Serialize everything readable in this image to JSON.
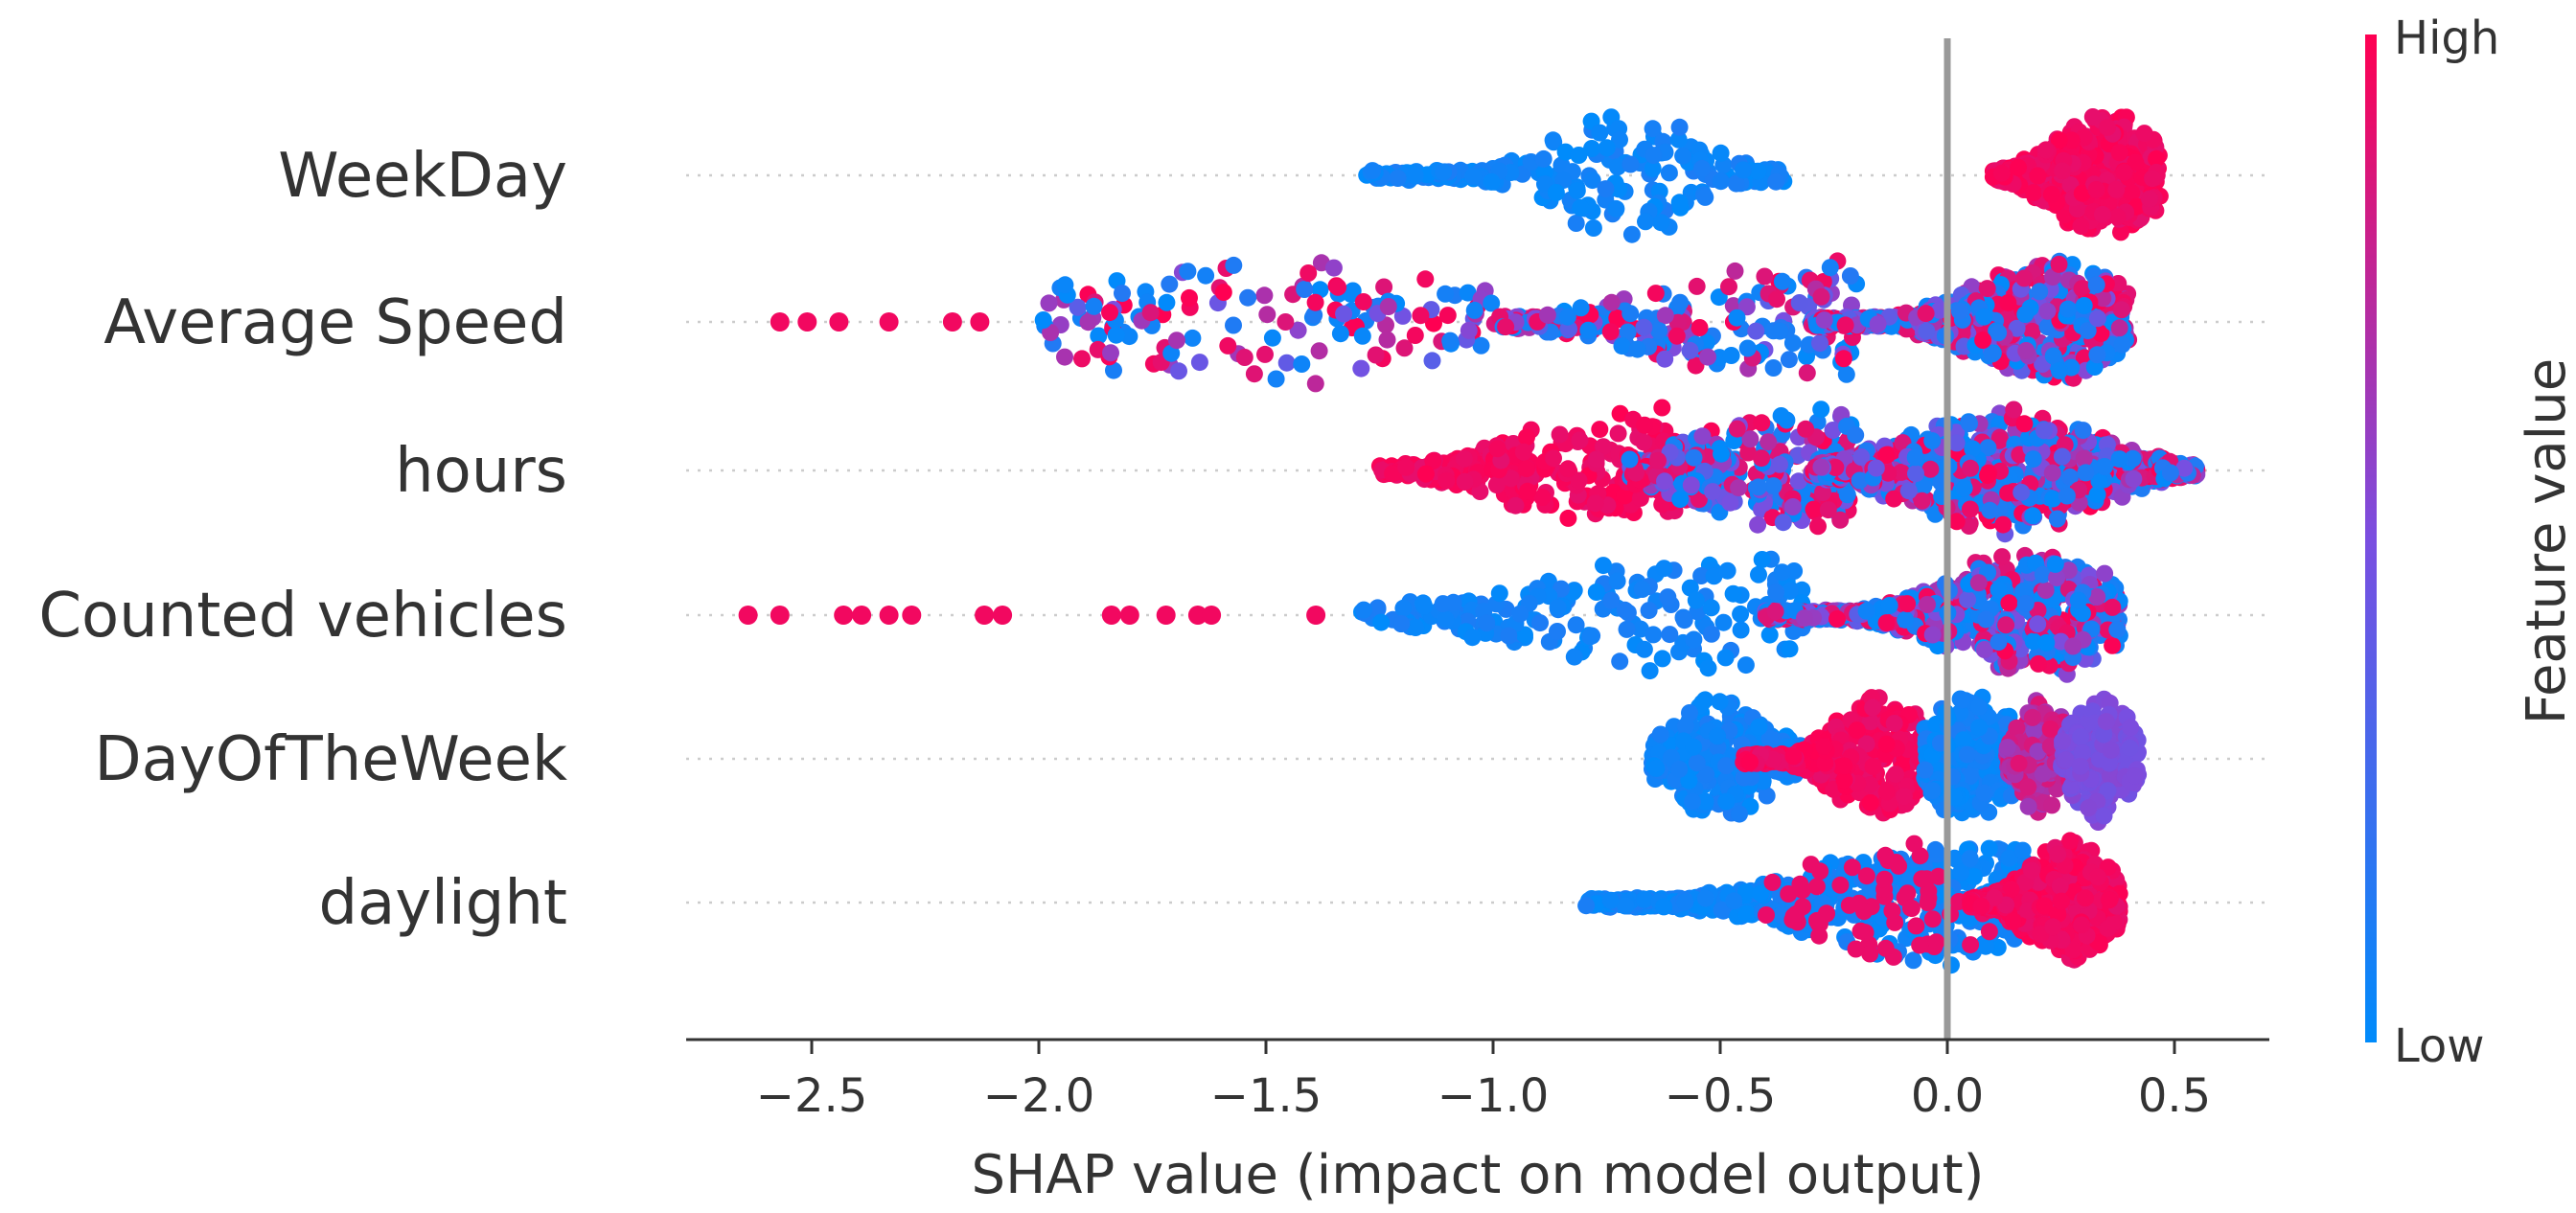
{
  "chart_data": {
    "type": "scatter",
    "subtype": "shap-beeswarm",
    "title": "",
    "xlabel": "SHAP value (impact on model output)",
    "ylabel": "",
    "xlim": [
      -2.8,
      0.7
    ],
    "xticks": [
      -2.5,
      -2.0,
      -1.5,
      -1.0,
      -0.5,
      0.0,
      0.5
    ],
    "xtick_labels": [
      "−2.5",
      "−2.0",
      "−1.5",
      "−1.0",
      "−0.5",
      "0.0",
      "0.5"
    ],
    "zero_line_at": 0.0,
    "grid": "dotted horizontal per feature",
    "colorbar": {
      "title": "Feature value",
      "high_label": "High",
      "low_label": "Low",
      "high_color": "#ff0052",
      "low_color": "#008bfb"
    },
    "features": [
      {
        "name": "WeekDay",
        "segments": [
          {
            "x0": -1.28,
            "x1": -0.35,
            "peak": -0.7,
            "width": 0.2,
            "color": "low",
            "density": 420
          },
          {
            "x0": 0.1,
            "x1": 0.47,
            "peak": 0.35,
            "width": 0.14,
            "color": "high",
            "density": 1100
          }
        ],
        "outliers": []
      },
      {
        "name": "Average Speed",
        "segments": [
          {
            "x0": -2.0,
            "x1": -1.0,
            "peak": -1.5,
            "width": 0.6,
            "color": "mix",
            "density": 260
          },
          {
            "x0": -1.0,
            "x1": -0.2,
            "peak": -0.3,
            "width": 0.4,
            "color": "mix",
            "density": 380
          },
          {
            "x0": -0.3,
            "x1": 0.4,
            "peak": 0.22,
            "width": 0.2,
            "color": "mix",
            "density": 1400
          }
        ],
        "outliers": [
          -2.57,
          -2.51,
          -2.44,
          -2.33,
          -2.19,
          -2.13
        ]
      },
      {
        "name": "hours",
        "segments": [
          {
            "x0": -1.25,
            "x1": -0.6,
            "peak": -0.7,
            "width": 0.3,
            "color": "high",
            "density": 520
          },
          {
            "x0": -0.7,
            "x1": -0.2,
            "peak": -0.3,
            "width": 0.3,
            "color": "mix",
            "density": 500
          },
          {
            "x0": -0.3,
            "x1": 0.55,
            "peak": 0.12,
            "width": 0.25,
            "color": "mix",
            "density": 1700
          }
        ],
        "outliers": []
      },
      {
        "name": "Counted vehicles",
        "segments": [
          {
            "x0": -1.3,
            "x1": -0.3,
            "peak": -0.5,
            "width": 0.5,
            "color": "low",
            "density": 330
          },
          {
            "x0": -0.4,
            "x1": 0.38,
            "peak": 0.18,
            "width": 0.22,
            "color": "mix",
            "density": 1400
          }
        ],
        "outliers": [
          -2.64,
          -2.57,
          -2.43,
          -2.39,
          -2.33,
          -2.28,
          -2.12,
          -2.08,
          -1.84,
          -1.8,
          -1.72,
          -1.65,
          -1.62,
          -1.39
        ]
      },
      {
        "name": "DayOfTheWeek",
        "segments": [
          {
            "x0": -0.65,
            "x1": -0.3,
            "peak": -0.5,
            "width": 0.13,
            "color": "low",
            "density": 500
          },
          {
            "x0": -0.45,
            "x1": -0.05,
            "peak": -0.15,
            "width": 0.12,
            "color": "high",
            "density": 700
          },
          {
            "x0": -0.05,
            "x1": 0.18,
            "peak": 0.05,
            "width": 0.12,
            "color": "low",
            "density": 500
          },
          {
            "x0": 0.13,
            "x1": 0.28,
            "peak": 0.21,
            "width": 0.06,
            "color": "mid",
            "density": 420
          },
          {
            "x0": 0.25,
            "x1": 0.42,
            "peak": 0.34,
            "width": 0.08,
            "color": "purple",
            "density": 420
          }
        ],
        "outliers": []
      },
      {
        "name": "daylight",
        "segments": [
          {
            "x0": -0.8,
            "x1": 0.2,
            "peak": 0.0,
            "width": 0.35,
            "color": "low",
            "density": 900
          },
          {
            "x0": -0.4,
            "x1": 0.1,
            "peak": -0.1,
            "width": 0.25,
            "color": "high-sparse",
            "density": 120
          },
          {
            "x0": 0.05,
            "x1": 0.38,
            "peak": 0.27,
            "width": 0.11,
            "color": "high",
            "density": 1000
          }
        ],
        "outliers": []
      }
    ]
  }
}
